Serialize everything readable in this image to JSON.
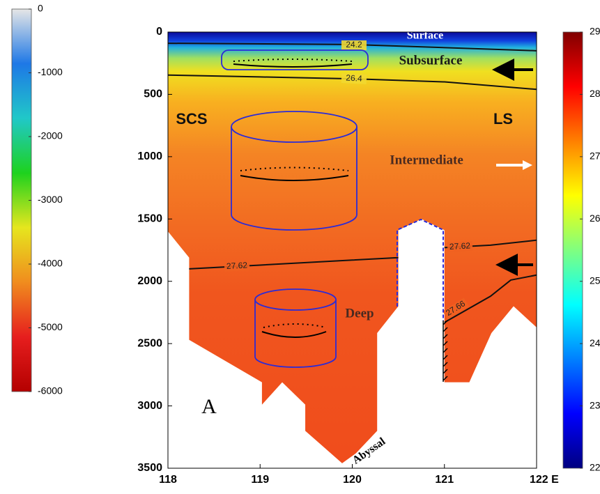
{
  "chart_data": {
    "type": "section",
    "xlim": [
      118,
      122
    ],
    "xticks": [
      118,
      119,
      120,
      121,
      {
        "value": 122,
        "label": "122 E"
      }
    ],
    "ylim": [
      3500,
      0
    ],
    "yticks": [
      0,
      500,
      1000,
      1500,
      2000,
      2500,
      3000,
      3500
    ],
    "contours": [
      {
        "level": 24.2,
        "x": [
          118,
          120,
          122
        ],
        "y": [
          90,
          100,
          150
        ]
      },
      {
        "level": 26.4,
        "x": [
          118,
          119,
          120,
          121,
          122
        ],
        "y": [
          345,
          360,
          375,
          400,
          460
        ]
      },
      {
        "level": 27.62,
        "x": [
          118.23,
          119,
          120,
          120.5
        ],
        "y": [
          1900,
          1870,
          1830,
          1810
        ]
      },
      {
        "level": 27.62,
        "x": [
          121,
          121.5,
          122
        ],
        "y": [
          1730,
          1710,
          1670
        ]
      },
      {
        "level": 27.66,
        "x": [
          121,
          121.5,
          121.72,
          122
        ],
        "y": [
          2330,
          2120,
          1990,
          1950
        ]
      }
    ],
    "bathymetry": {
      "x": [
        118,
        118.23,
        118.23,
        119.02,
        119.02,
        119.24,
        119.49,
        119.49,
        119.89,
        120.04,
        120.27,
        120.27,
        120.5,
        120.5,
        120.75,
        121,
        121,
        121.27,
        121.51,
        121.75,
        122
      ],
      "y": [
        1600,
        1810,
        2470,
        2810,
        2990,
        2810,
        2990,
        3200,
        3460,
        3380,
        3200,
        2415,
        2200,
        1590,
        1500,
        1590,
        2810,
        2810,
        2415,
        2200,
        2370
      ]
    },
    "annotations": [
      "Surface",
      "Subsurface",
      "SCS",
      "LS",
      "Intermediate",
      "Deep",
      "Abyssal",
      "A"
    ],
    "colorbars": [
      {
        "lim": [
          0,
          -6000
        ],
        "ticks": [
          0,
          -1000,
          -2000,
          -3000,
          -4000,
          -5000,
          -6000
        ],
        "colors": [
          "#e6e6e6",
          "#1e78e6",
          "#20c8c8",
          "#1ed21e",
          "#e6e61e",
          "#f08c1e",
          "#e61e1e",
          "#b40000"
        ]
      },
      {
        "lim": [
          29,
          22
        ],
        "ticks": [
          29,
          28,
          27,
          26,
          25,
          24,
          23,
          22
        ],
        "colors": [
          "#800000",
          "#ff0000",
          "#ff8000",
          "#ffff00",
          "#80ff80",
          "#00ffff",
          "#0080ff",
          "#0000ff",
          "#000080"
        ]
      }
    ]
  }
}
